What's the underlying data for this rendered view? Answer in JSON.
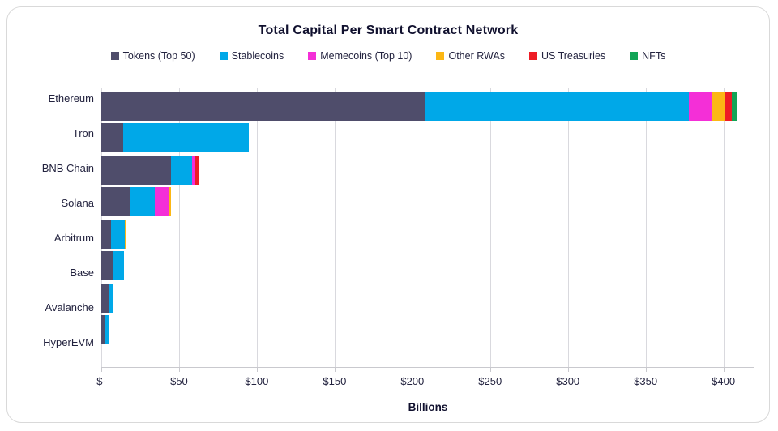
{
  "title": "Total Capital Per Smart Contract Network",
  "chart_data": {
    "type": "bar",
    "orientation": "horizontal",
    "stacked": true,
    "title": "Total Capital Per Smart Contract Network",
    "xlabel": "Billions",
    "unit": "USD billions",
    "grid": true,
    "legend_position": "top",
    "xlim": [
      0,
      420
    ],
    "xticks": {
      "values": [
        0,
        50,
        100,
        150,
        200,
        250,
        300,
        350,
        400
      ],
      "labels": [
        "$-",
        "$50",
        "$100",
        "$150",
        "$200",
        "$250",
        "$300",
        "$350",
        "$400"
      ]
    },
    "categories": [
      "Ethereum",
      "Tron",
      "BNB Chain",
      "Solana",
      "Arbitrum",
      "Base",
      "Avalanche",
      "HyperEVM"
    ],
    "series": [
      {
        "name": "Tokens (Top 50)",
        "color": "#4f4d6b",
        "values": [
          208,
          14,
          45,
          19,
          6,
          7.5,
          4.5,
          2.5
        ]
      },
      {
        "name": "Stablecoins",
        "color": "#00a8e8",
        "values": [
          170,
          81,
          13.5,
          15.5,
          9,
          7,
          2.7,
          2.3
        ]
      },
      {
        "name": "Memecoins (Top 10)",
        "color": "#f42fd7",
        "values": [
          15,
          0,
          2,
          9,
          0,
          0,
          0.8,
          0
        ]
      },
      {
        "name": "Other RWAs",
        "color": "#fcb714",
        "values": [
          8,
          0,
          0,
          1.5,
          1,
          0,
          0,
          0
        ]
      },
      {
        "name": "US Treasuries",
        "color": "#ee1c25",
        "values": [
          4.5,
          0,
          2,
          0,
          0,
          0,
          0,
          0
        ]
      },
      {
        "name": "NFTs",
        "color": "#12a456",
        "values": [
          3,
          0,
          0,
          0,
          0,
          0,
          0,
          0
        ]
      }
    ],
    "totals": [
      408.5,
      95,
      62.5,
      45,
      16,
      14.5,
      8,
      4.8
    ]
  }
}
